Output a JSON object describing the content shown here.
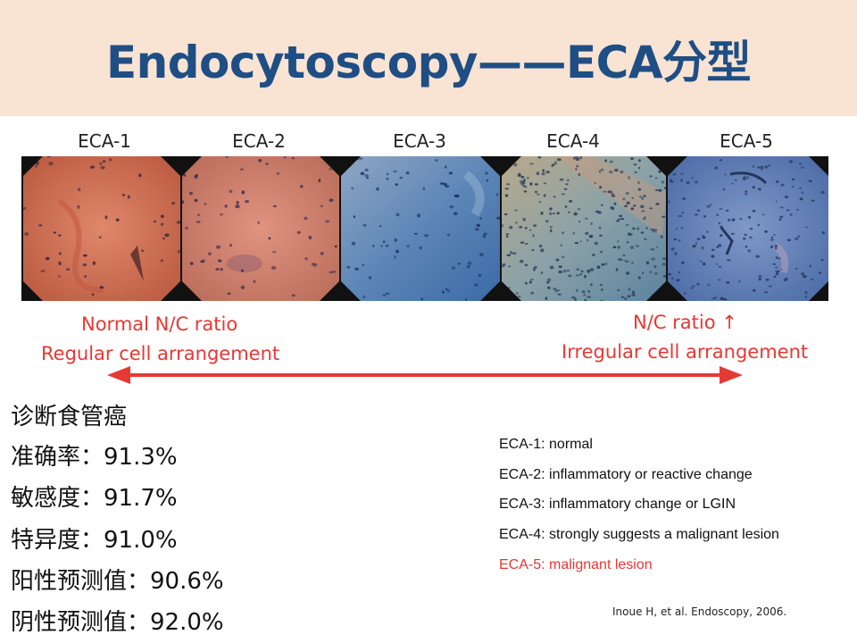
{
  "slide": {
    "title": "Endocytoscopy——ECA分型",
    "panels": [
      {
        "label": "ECA-1"
      },
      {
        "label": "ECA-2"
      },
      {
        "label": "ECA-3"
      },
      {
        "label": "ECA-4"
      },
      {
        "label": "ECA-5"
      }
    ],
    "arrow": {
      "left_line1": "Normal N/C ratio",
      "left_line2": "Regular cell arrangement",
      "right_line1": "N/C ratio ↑",
      "right_line2": "Irregular cell arrangement",
      "color": "#e53935"
    },
    "stats": {
      "heading": "诊断食管癌",
      "accuracy": "准确率：91.3%",
      "sensitivity": "敏感度：91.7%",
      "specificity": "特异度：91.0%",
      "ppv": "阳性预测值：90.6%",
      "npv": "阴性预测值：92.0%"
    },
    "legend": [
      "ECA-1: normal",
      "ECA-2: inflammatory or reactive change",
      "ECA-3: inflammatory change or LGIN",
      "ECA-4: strongly suggests a malignant lesion",
      "ECA-5: malignant lesion"
    ],
    "citation": "Inoue H, et al. Endoscopy, 2006.",
    "colors": {
      "title": "#1f4e84",
      "title_band": "#f9e3d3",
      "accent_red": "#e53935"
    }
  }
}
